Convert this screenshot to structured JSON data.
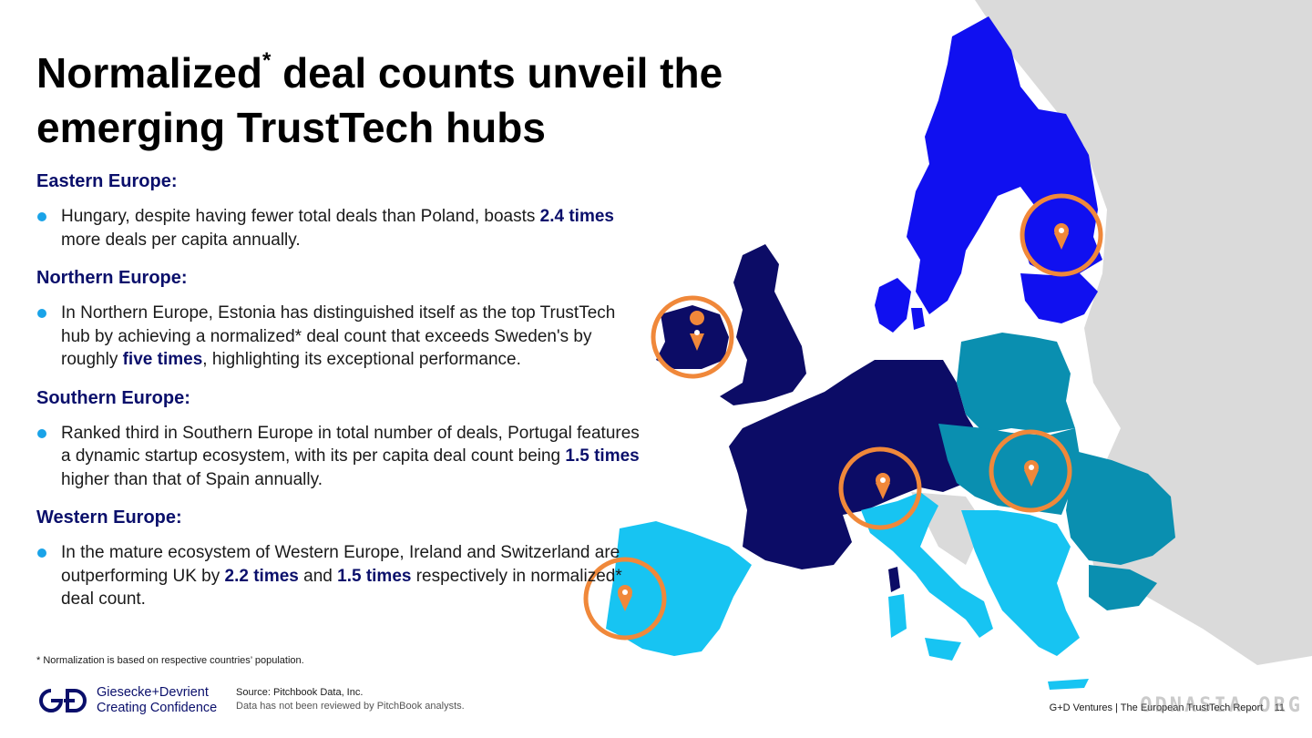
{
  "title": {
    "main_part1": "Normalized",
    "asterisk": "*",
    "main_part2": " deal counts unveil the emerging TrustTech hubs"
  },
  "sections": [
    {
      "heading": "Eastern Europe:",
      "segments": [
        {
          "text": "Hungary, despite having fewer total deals than Poland, boasts "
        },
        {
          "text": "2.4 times",
          "bold": true
        },
        {
          "text": " more deals per capita annually."
        }
      ]
    },
    {
      "heading": "Northern Europe:",
      "segments": [
        {
          "text": "In Northern Europe, Estonia has distinguished itself as the top TrustTech hub by achieving a normalized* deal count that exceeds Sweden's by roughly "
        },
        {
          "text": "five times",
          "bold": true
        },
        {
          "text": ", highlighting its exceptional performance."
        }
      ]
    },
    {
      "heading": "Southern Europe:",
      "segments": [
        {
          "text": "Ranked third in Southern Europe in total number of deals, Portugal features a dynamic startup ecosystem, with its per capita deal count being "
        },
        {
          "text": "1.5 times",
          "bold": true
        },
        {
          "text": " higher than that of Spain annually."
        }
      ]
    },
    {
      "heading": "Western Europe:",
      "segments": [
        {
          "text": "In the mature ecosystem of Western Europe, Ireland and Switzerland are outperforming UK by "
        },
        {
          "text": "2.2 times",
          "bold": true
        },
        {
          "text": " and "
        },
        {
          "text": "1.5 times",
          "bold": true
        },
        {
          "text": " respectively in normalized* deal count."
        }
      ]
    }
  ],
  "footnote": "* Normalization is based on respective countries’ population.",
  "logo": {
    "name": "Giesecke+Devrient",
    "tagline": "Creating Confidence"
  },
  "source": {
    "line1": "Source: Pitchbook Data, Inc.",
    "line2": "Data has not been reviewed by PitchBook analysts."
  },
  "footer": {
    "text": "G+D Ventures  |  The European TrustTech Report",
    "page": "11"
  },
  "watermark": "ODNASIA.ORG",
  "colors": {
    "heading": "#0a0f6b",
    "bullet": "#1aa3e8",
    "western": "#0c0c66",
    "northern": "#1010f0",
    "eastern": "#0a8fb0",
    "southern": "#17c4f2",
    "other_land": "#dadada",
    "marker": "#f0883a"
  },
  "map": {
    "regions": [
      "Western Europe",
      "Northern Europe",
      "Eastern Europe",
      "Southern Europe"
    ],
    "highlighted_hubs": [
      "Ireland",
      "Estonia",
      "Switzerland",
      "Hungary",
      "Portugal"
    ]
  }
}
